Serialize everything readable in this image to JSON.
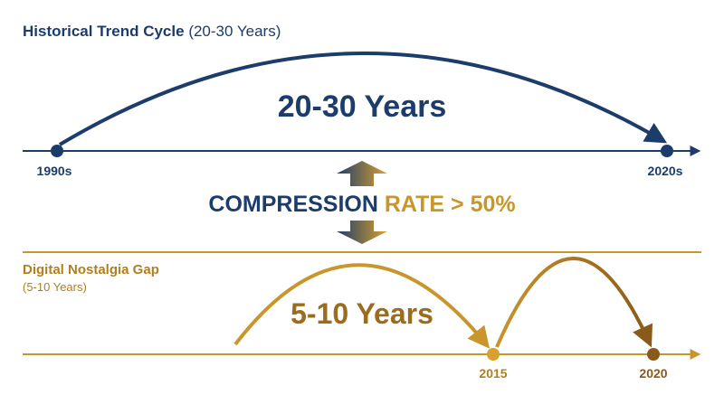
{
  "header": {
    "title": "Historical Trend Cycle",
    "subtitle": "(20-30 Years)"
  },
  "historical": {
    "span_label": "20-30 Years",
    "start": "1990s",
    "end": "2020s"
  },
  "compression": {
    "word": "COMPRESSION",
    "rate": "RATE > 50%"
  },
  "digital": {
    "title": "Digital Nostalgia Gap",
    "subtitle": "(5-10 Years)",
    "span_label": "5-10 Years",
    "start": "2015",
    "end": "2020"
  }
}
